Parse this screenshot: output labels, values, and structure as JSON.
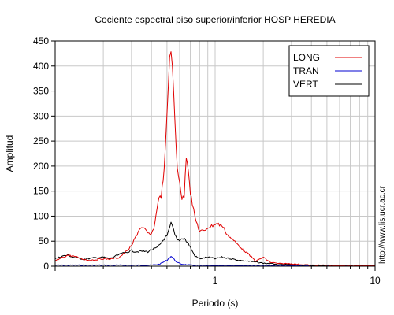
{
  "chart_data": {
    "type": "line",
    "title": "Cociente espectral piso superior/inferior  HOSP HEREDIA",
    "xlabel": "Periodo (s)",
    "ylabel": "Amplitud",
    "x_scale": "log",
    "xlim": [
      0.1,
      10
    ],
    "ylim": [
      0,
      450
    ],
    "x_tick_labels": [
      {
        "value": 1,
        "label": "1"
      },
      {
        "value": 10,
        "label": "10"
      }
    ],
    "yticks": [
      0,
      50,
      100,
      150,
      200,
      250,
      300,
      350,
      400,
      450
    ],
    "grid": true,
    "legend_position": "top-right",
    "series": [
      {
        "name": "LONG",
        "color": "#e00000",
        "points": [
          [
            0.1,
            10
          ],
          [
            0.11,
            17
          ],
          [
            0.12,
            22
          ],
          [
            0.13,
            20
          ],
          [
            0.14,
            17
          ],
          [
            0.15,
            14
          ],
          [
            0.16,
            12
          ],
          [
            0.18,
            13
          ],
          [
            0.2,
            15
          ],
          [
            0.22,
            14
          ],
          [
            0.25,
            17
          ],
          [
            0.28,
            30
          ],
          [
            0.3,
            40
          ],
          [
            0.32,
            60
          ],
          [
            0.34,
            77
          ],
          [
            0.36,
            74
          ],
          [
            0.38,
            66
          ],
          [
            0.4,
            62
          ],
          [
            0.42,
            85
          ],
          [
            0.44,
            132
          ],
          [
            0.46,
            140
          ],
          [
            0.48,
            190
          ],
          [
            0.5,
            300
          ],
          [
            0.52,
            420
          ],
          [
            0.53,
            428
          ],
          [
            0.54,
            405
          ],
          [
            0.56,
            290
          ],
          [
            0.58,
            195
          ],
          [
            0.6,
            170
          ],
          [
            0.62,
            135
          ],
          [
            0.64,
            138
          ],
          [
            0.66,
            220
          ],
          [
            0.68,
            195
          ],
          [
            0.7,
            148
          ],
          [
            0.72,
            125
          ],
          [
            0.75,
            96
          ],
          [
            0.8,
            70
          ],
          [
            0.85,
            70
          ],
          [
            0.9,
            78
          ],
          [
            0.95,
            80
          ],
          [
            1.0,
            85
          ],
          [
            1.1,
            82
          ],
          [
            1.2,
            62
          ],
          [
            1.4,
            42
          ],
          [
            1.6,
            25
          ],
          [
            1.8,
            10
          ],
          [
            2.0,
            18
          ],
          [
            2.2,
            8
          ],
          [
            2.5,
            5
          ],
          [
            3.0,
            5
          ],
          [
            3.5,
            3
          ],
          [
            4.0,
            2
          ],
          [
            5.0,
            2
          ],
          [
            6.0,
            1
          ],
          [
            8.0,
            1
          ],
          [
            10.0,
            1
          ]
        ]
      },
      {
        "name": "TRAN",
        "color": "#0000d0",
        "points": [
          [
            0.1,
            2
          ],
          [
            0.2,
            2
          ],
          [
            0.3,
            2
          ],
          [
            0.4,
            2
          ],
          [
            0.45,
            4
          ],
          [
            0.5,
            12
          ],
          [
            0.53,
            20
          ],
          [
            0.55,
            15
          ],
          [
            0.58,
            7
          ],
          [
            0.62,
            4
          ],
          [
            0.7,
            2
          ],
          [
            1.0,
            1
          ],
          [
            2.0,
            1
          ],
          [
            4.0,
            1
          ],
          [
            10.0,
            0
          ]
        ]
      },
      {
        "name": "VERT",
        "color": "#000000",
        "points": [
          [
            0.1,
            15
          ],
          [
            0.11,
            20
          ],
          [
            0.12,
            22
          ],
          [
            0.13,
            18
          ],
          [
            0.14,
            16
          ],
          [
            0.15,
            14
          ],
          [
            0.16,
            15
          ],
          [
            0.18,
            17
          ],
          [
            0.2,
            18
          ],
          [
            0.22,
            15
          ],
          [
            0.25,
            23
          ],
          [
            0.28,
            28
          ],
          [
            0.3,
            31
          ],
          [
            0.32,
            29
          ],
          [
            0.35,
            30
          ],
          [
            0.38,
            29
          ],
          [
            0.4,
            33
          ],
          [
            0.43,
            36
          ],
          [
            0.45,
            42
          ],
          [
            0.48,
            55
          ],
          [
            0.5,
            60
          ],
          [
            0.52,
            75
          ],
          [
            0.53,
            85
          ],
          [
            0.54,
            80
          ],
          [
            0.56,
            62
          ],
          [
            0.58,
            52
          ],
          [
            0.6,
            52
          ],
          [
            0.62,
            55
          ],
          [
            0.64,
            57
          ],
          [
            0.66,
            50
          ],
          [
            0.68,
            45
          ],
          [
            0.7,
            38
          ],
          [
            0.72,
            30
          ],
          [
            0.75,
            20
          ],
          [
            0.8,
            15
          ],
          [
            0.9,
            18
          ],
          [
            1.0,
            15
          ],
          [
            1.1,
            18
          ],
          [
            1.2,
            16
          ],
          [
            1.4,
            12
          ],
          [
            1.6,
            10
          ],
          [
            1.8,
            8
          ],
          [
            2.0,
            6
          ],
          [
            2.5,
            4
          ],
          [
            3.0,
            3
          ],
          [
            4.0,
            2
          ],
          [
            5.0,
            1
          ],
          [
            7.0,
            1
          ],
          [
            10.0,
            1
          ]
        ]
      }
    ]
  },
  "watermark": "http://www.lis.ucr.ac.cr"
}
